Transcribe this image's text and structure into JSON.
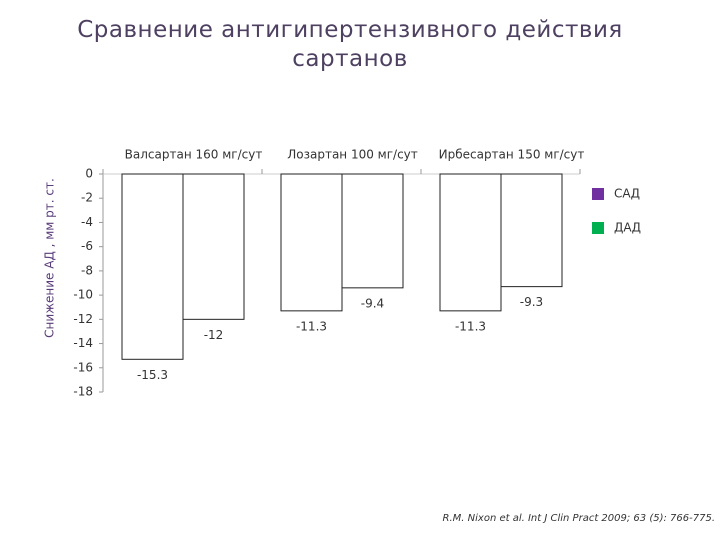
{
  "chart_data": {
    "type": "bar",
    "title": "Сравнение антигипертензивного действия сартанов",
    "y_label": "Снижение АД , мм рт. ст.",
    "categories": [
      "Валсартан 160 мг/сут",
      "Лозартан 100 мг/сут",
      "Ирбесартан 150 мг/сут"
    ],
    "series": [
      {
        "name": "САД",
        "color": "#7030a0",
        "values": [
          -15.3,
          -11.3,
          -11.3
        ]
      },
      {
        "name": "ДАД",
        "color": "#00b050",
        "values": [
          -12,
          -9.4,
          -9.3
        ]
      }
    ],
    "bar_fill": "#ffffff",
    "ylim": [
      0,
      -18
    ],
    "yticks": [
      0,
      -2,
      -4,
      -6,
      -8,
      -10,
      -12,
      -14,
      -16,
      -18
    ],
    "legend": "right",
    "source": "R.M. Nixon et al. Int J Clin Pract 2009; 63 (5): 766-775."
  }
}
